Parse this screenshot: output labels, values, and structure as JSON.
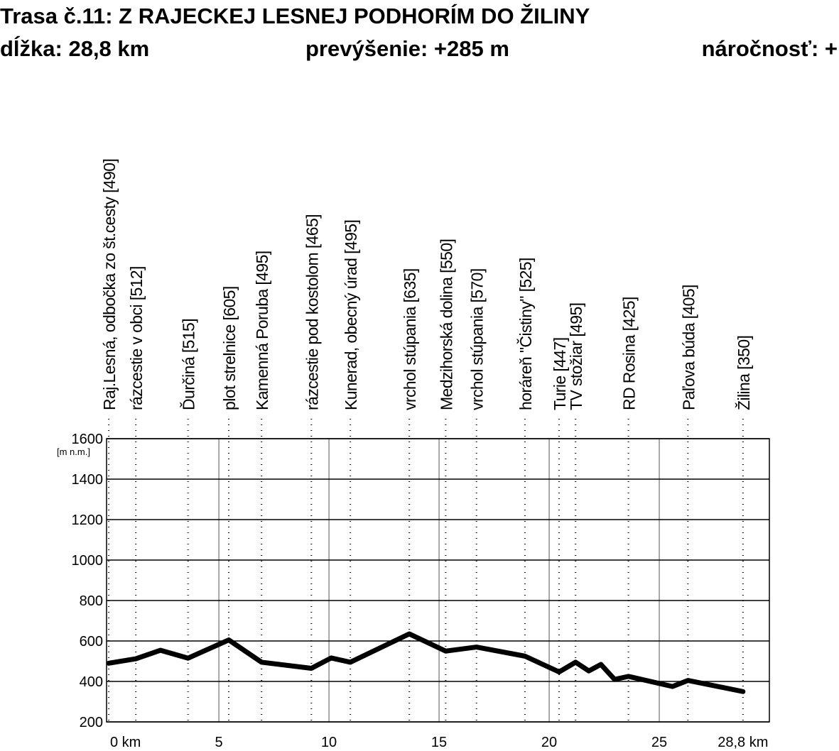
{
  "header": {
    "title": "Trasa č.11: Z RAJECKEJ LESNEJ PODHORÍM DO ŽILINY",
    "length": "dĺžka: 28,8 km",
    "climb": "prevýšenie: +285 m",
    "difficulty": "náročnosť: +"
  },
  "chart_data": {
    "type": "line",
    "y_unit": "[m n.m.]",
    "x": [
      0,
      1.23,
      2.35,
      3.6,
      5.45,
      6.94,
      9.2,
      10.1,
      10.97,
      13.65,
      15.3,
      16.7,
      18.9,
      20.45,
      21.2,
      21.8,
      22.35,
      22.97,
      23.6,
      25.6,
      26.3,
      28.8
    ],
    "series": [
      {
        "color": "#000000",
        "values": [
          490,
          512,
          554,
          515,
          605,
          495,
          465,
          516,
          495,
          635,
          550,
          570,
          525,
          447,
          495,
          452,
          484,
          410,
          425,
          375,
          405,
          350
        ]
      }
    ],
    "xlim": [
      -0.1,
      30
    ],
    "ylim": [
      200,
      1600
    ],
    "yticks": [
      200,
      400,
      600,
      800,
      1000,
      1200,
      1400,
      1600
    ],
    "xticks": [
      {
        "value": 0,
        "label": "0 km"
      },
      5,
      10,
      15,
      20,
      25,
      {
        "value": 28.8,
        "label": "28,8 km"
      }
    ],
    "grid": true,
    "stations": [
      {
        "label": "Raj.Lesná, odbočka zo št.cesty  [490]",
        "x": 0
      },
      {
        "label": "rázcestie v obci  [512]",
        "x": 1.23
      },
      {
        "label": "Ďurčiná  [515]",
        "x": 3.6
      },
      {
        "label": "plot strelnice  [605]",
        "x": 5.45
      },
      {
        "label": "Kamenná Poruba  [495]",
        "x": 6.94
      },
      {
        "label": "rázcestie pod kostolom  [465]",
        "x": 9.2
      },
      {
        "label": "Kunerad, obecný úrad  [495]",
        "x": 10.97
      },
      {
        "label": "vrchol stúpania  [635]",
        "x": 13.65
      },
      {
        "label": "Medzihorská dolina  [550]",
        "x": 15.3
      },
      {
        "label": "vrchol stúpania  [570]",
        "x": 16.7
      },
      {
        "label": "horáreň \"Čistiny\"  [525]",
        "x": 18.9
      },
      {
        "label": "Turie  [447]",
        "x": 20.45
      },
      {
        "label": "TV stožiar  [495]",
        "x": 21.2
      },
      {
        "label": "RD Rosina  [425]",
        "x": 23.6
      },
      {
        "label": "Paľova búda  [405]",
        "x": 26.3
      },
      {
        "label": "Žilina  [350]",
        "x": 28.8
      }
    ]
  }
}
